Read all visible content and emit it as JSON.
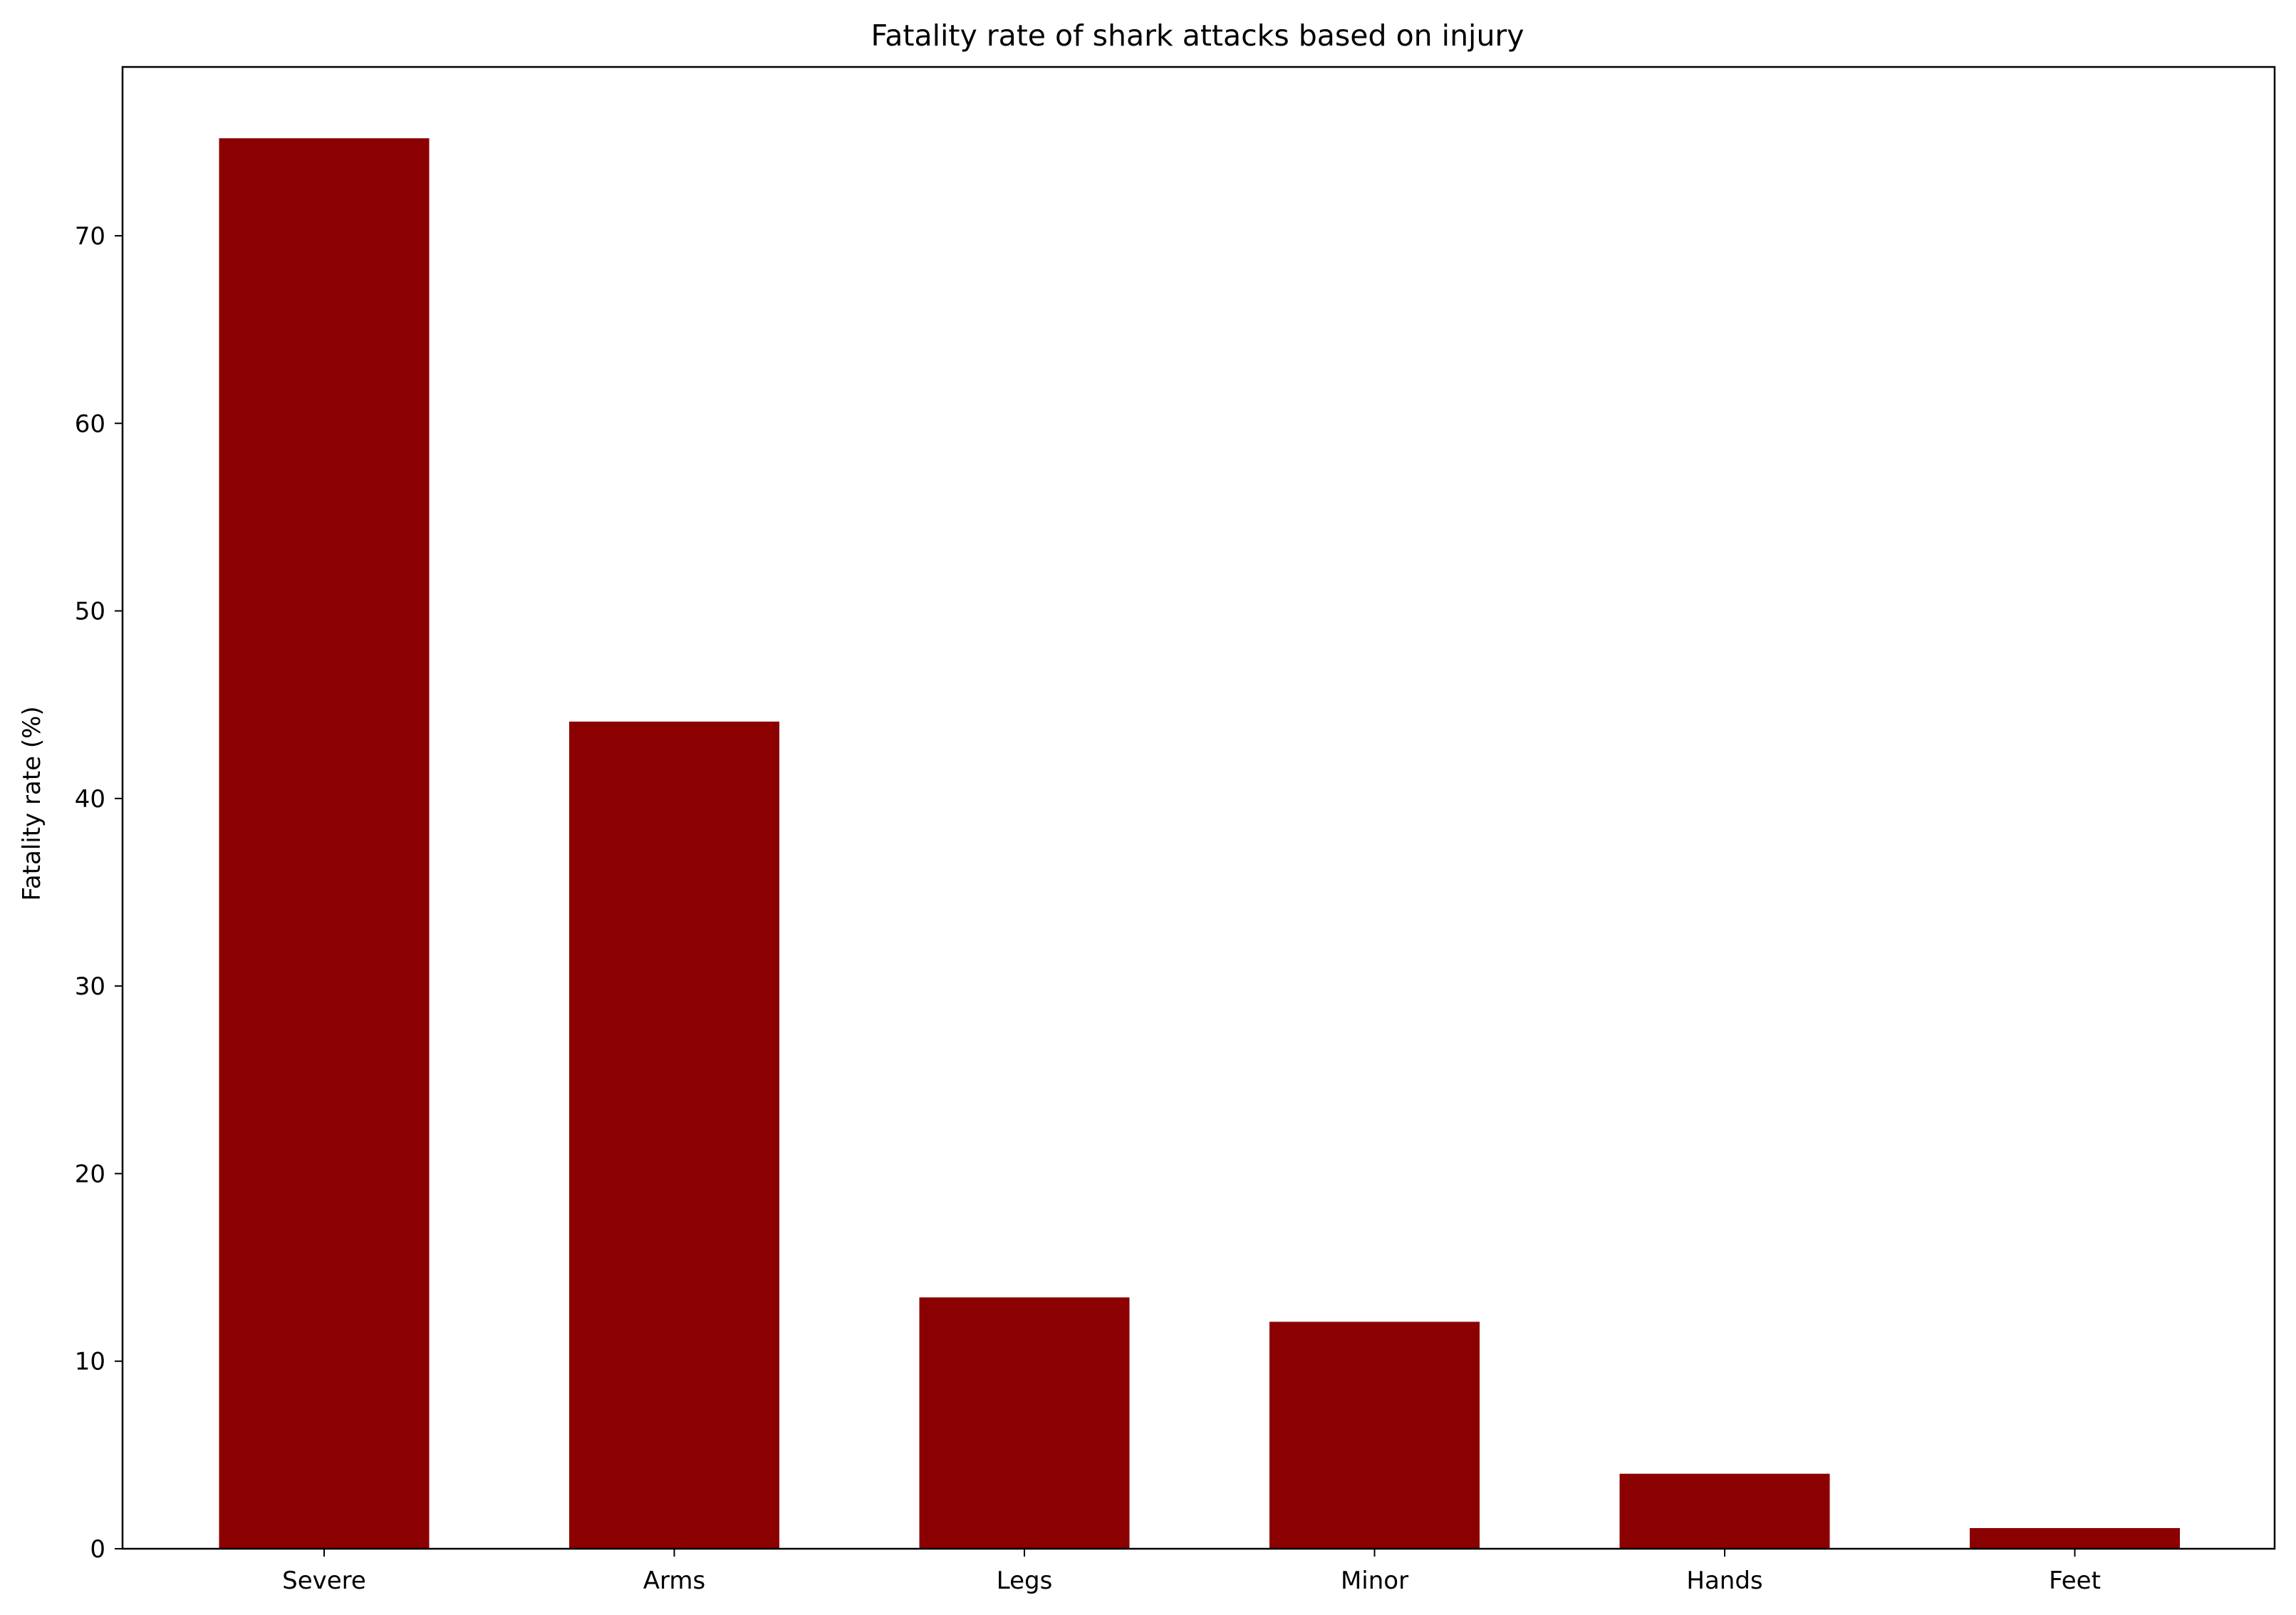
{
  "chart_data": {
    "type": "bar",
    "title": "Fatality rate of shark attacks based on injury",
    "xlabel": "",
    "ylabel": "Fatality rate (%)",
    "categories": [
      "Severe",
      "Arms",
      "Legs",
      "Minor",
      "Hands",
      "Feet"
    ],
    "values": [
      75.2,
      44.1,
      13.4,
      12.1,
      4.0,
      1.1
    ],
    "ylim": [
      0,
      79
    ],
    "yticks": [
      0,
      10,
      20,
      30,
      40,
      50,
      60,
      70
    ],
    "grid": false,
    "legend": null,
    "bar_color": "#8b0000"
  }
}
